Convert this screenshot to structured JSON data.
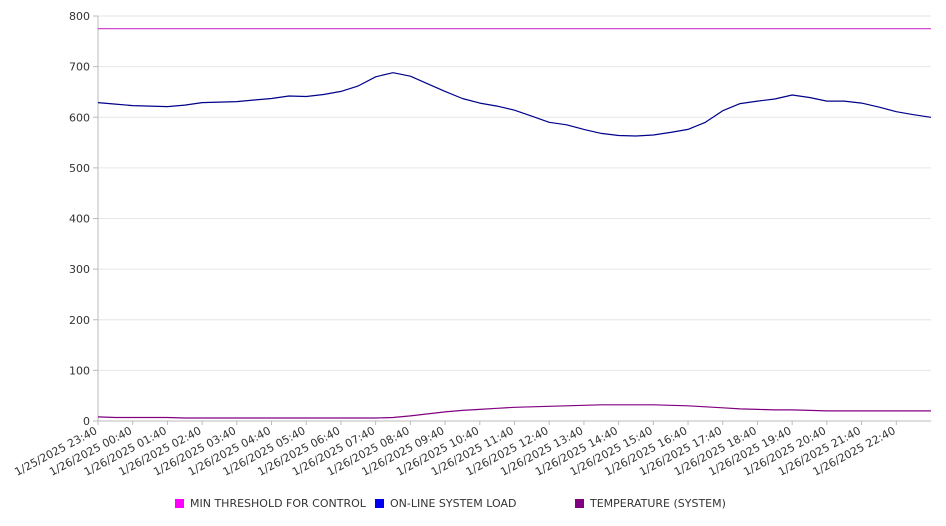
{
  "chart_data": {
    "type": "line",
    "title": "",
    "xlabel": "",
    "ylabel": "",
    "ylim": [
      0,
      800
    ],
    "yticks": [
      0,
      100,
      200,
      300,
      400,
      500,
      600,
      700,
      800
    ],
    "grid": true,
    "legend_position": "bottom",
    "xticks": [
      "1/25/2025 23:40",
      "1/26/2025 00:40",
      "1/26/2025 01:40",
      "1/26/2025 02:40",
      "1/26/2025 03:40",
      "1/26/2025 04:40",
      "1/26/2025 05:40",
      "1/26/2025 06:40",
      "1/26/2025 07:40",
      "1/26/2025 08:40",
      "1/26/2025 09:40",
      "1/26/2025 10:40",
      "1/26/2025 11:40",
      "1/26/2025 12:40",
      "1/26/2025 13:40",
      "1/26/2025 14:40",
      "1/26/2025 15:40",
      "1/26/2025 16:40",
      "1/26/2025 17:40",
      "1/26/2025 18:40",
      "1/26/2025 19:40",
      "1/26/2025 20:40",
      "1/26/2025 21:40",
      "1/26/2025 22:40"
    ],
    "x": [
      "1/25/2025 23:40",
      "1/26/2025 00:10",
      "1/26/2025 00:40",
      "1/26/2025 01:10",
      "1/26/2025 01:40",
      "1/26/2025 02:10",
      "1/26/2025 02:40",
      "1/26/2025 03:10",
      "1/26/2025 03:40",
      "1/26/2025 04:10",
      "1/26/2025 04:40",
      "1/26/2025 05:10",
      "1/26/2025 05:40",
      "1/26/2025 06:10",
      "1/26/2025 06:40",
      "1/26/2025 07:10",
      "1/26/2025 07:40",
      "1/26/2025 08:10",
      "1/26/2025 08:40",
      "1/26/2025 09:10",
      "1/26/2025 09:40",
      "1/26/2025 10:10",
      "1/26/2025 10:40",
      "1/26/2025 11:10",
      "1/26/2025 11:40",
      "1/26/2025 12:10",
      "1/26/2025 12:40",
      "1/26/2025 13:10",
      "1/26/2025 13:40",
      "1/26/2025 14:10",
      "1/26/2025 14:40",
      "1/26/2025 15:10",
      "1/26/2025 15:40",
      "1/26/2025 16:10",
      "1/26/2025 16:40",
      "1/26/2025 17:10",
      "1/26/2025 17:40",
      "1/26/2025 18:10",
      "1/26/2025 18:40",
      "1/26/2025 19:10",
      "1/26/2025 19:40",
      "1/26/2025 20:10",
      "1/26/2025 20:40",
      "1/26/2025 21:10",
      "1/26/2025 21:40",
      "1/26/2025 22:10",
      "1/26/2025 22:40",
      "1/26/2025 23:10",
      "1/26/2025 23:40"
    ],
    "series": [
      {
        "name": "MIN THRESHOLD FOR CONTROL",
        "color": "#cc33cc",
        "values": [
          775,
          775,
          775,
          775,
          775,
          775,
          775,
          775,
          775,
          775,
          775,
          775,
          775,
          775,
          775,
          775,
          775,
          775,
          775,
          775,
          775,
          775,
          775,
          775,
          775,
          775,
          775,
          775,
          775,
          775,
          775,
          775,
          775,
          775,
          775,
          775,
          775,
          775,
          775,
          775,
          775,
          775,
          775,
          775,
          775,
          775,
          775,
          775,
          775
        ]
      },
      {
        "name": "ON-LINE SYSTEM LOAD",
        "color": "#00008b",
        "values": [
          629,
          626,
          623,
          622,
          621,
          624,
          629,
          630,
          631,
          634,
          637,
          642,
          641,
          645,
          651,
          662,
          680,
          688,
          681,
          666,
          651,
          637,
          628,
          622,
          614,
          602,
          590,
          585,
          576,
          568,
          564,
          563,
          565,
          570,
          576,
          590,
          613,
          627,
          632,
          636,
          644,
          639,
          632,
          632,
          628,
          620,
          611,
          605,
          600
        ]
      },
      {
        "name": "TEMPERATURE (SYSTEM)",
        "color": "#800080",
        "values": [
          8,
          7,
          7,
          7,
          7,
          6,
          6,
          6,
          6,
          6,
          6,
          6,
          6,
          6,
          6,
          6,
          6,
          7,
          10,
          14,
          18,
          21,
          23,
          25,
          27,
          28,
          29,
          30,
          31,
          32,
          32,
          32,
          32,
          31,
          30,
          28,
          26,
          24,
          23,
          22,
          22,
          21,
          20,
          20,
          20,
          20,
          20,
          20,
          20
        ]
      }
    ]
  }
}
